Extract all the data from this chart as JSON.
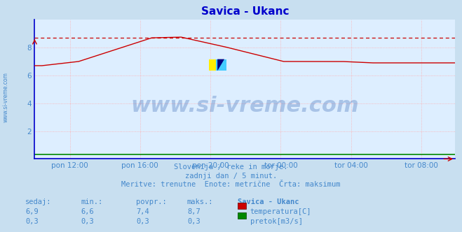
{
  "title": "Savica - Ukanc",
  "title_color": "#0000cc",
  "bg_color": "#c8dff0",
  "plot_bg_color": "#ddeeff",
  "grid_color": "#ffaaaa",
  "left_spine_color": "#0000cc",
  "bottom_spine_color": "#0000cc",
  "ylim": [
    0,
    10
  ],
  "yticks": [
    2,
    4,
    6,
    8
  ],
  "xlabel_color": "#4488cc",
  "watermark_text": "www.si-vreme.com",
  "watermark_color": "#2255aa",
  "temp_color": "#cc0000",
  "flow_color": "#008800",
  "max_line_color": "#cc0000",
  "max_value": 8.7,
  "x_tick_labels": [
    "pon 12:00",
    "pon 16:00",
    "pon 20:00",
    "tor 00:00",
    "tor 04:00",
    "tor 08:00"
  ],
  "footer_lines": [
    "Slovenija / reke in morje.",
    "zadnji dan / 5 minut.",
    "Meritve: trenutne  Enote: metrične  Črta: maksimum"
  ],
  "footer_color": "#4488cc",
  "table_header": [
    "sedaj:",
    "min.:",
    "povpr.:",
    "maks.:",
    "Savica - Ukanc"
  ],
  "table_row1": [
    "6,9",
    "6,6",
    "7,4",
    "8,7"
  ],
  "table_row2": [
    "0,3",
    "0,3",
    "0,3",
    "0,3"
  ],
  "legend_temp": "temperatura[C]",
  "legend_flow": "pretok[m3/s]",
  "legend_color_temp": "#cc0000",
  "legend_color_flow": "#008800",
  "sidebar_text": "www.si-vreme.com"
}
